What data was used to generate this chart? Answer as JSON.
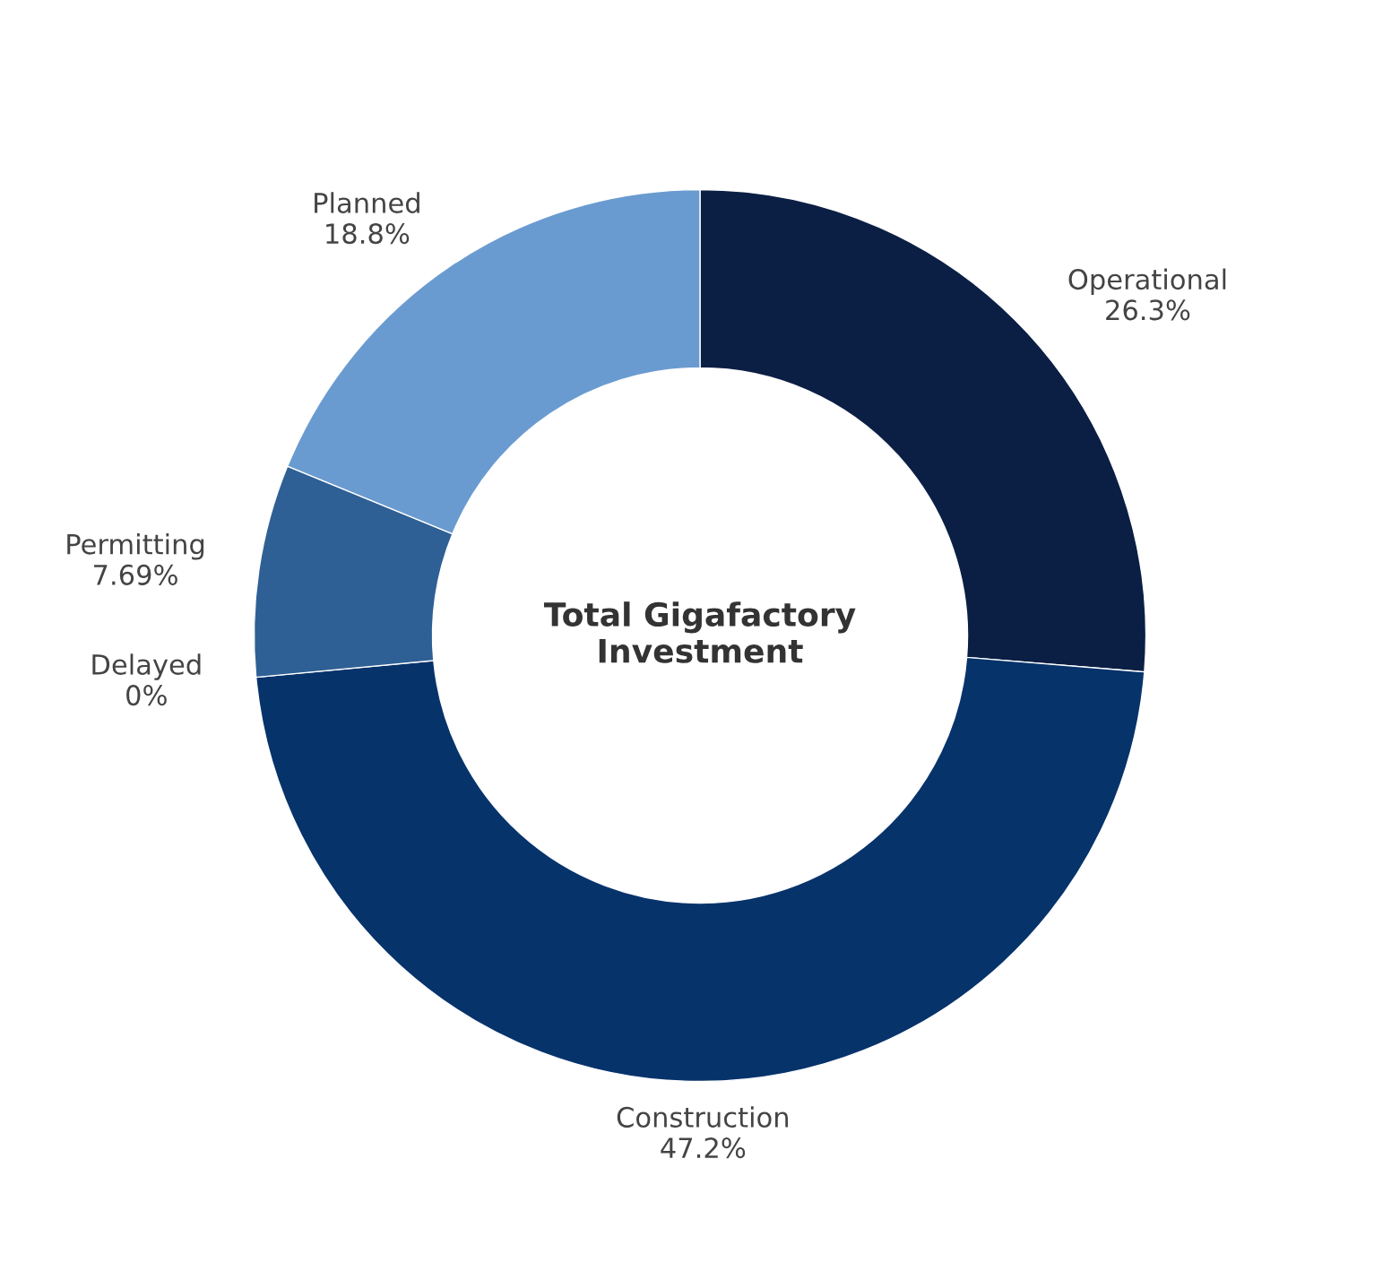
{
  "chart_data": {
    "type": "donut",
    "categories": [
      "Operational",
      "Construction",
      "Delayed",
      "Permitting",
      "Planned"
    ],
    "values": [
      26.3,
      47.2,
      0,
      7.69,
      18.8
    ],
    "value_labels": [
      "26.3%",
      "47.2%",
      "0%",
      "7.69%",
      "18.8%"
    ],
    "colors": [
      "#0b1f45",
      "#07336b",
      "#1d4a80",
      "#2f6095",
      "#6a9bd0"
    ],
    "annotations": [
      "Total Gigafactory\nInvestment"
    ],
    "legend": false
  }
}
